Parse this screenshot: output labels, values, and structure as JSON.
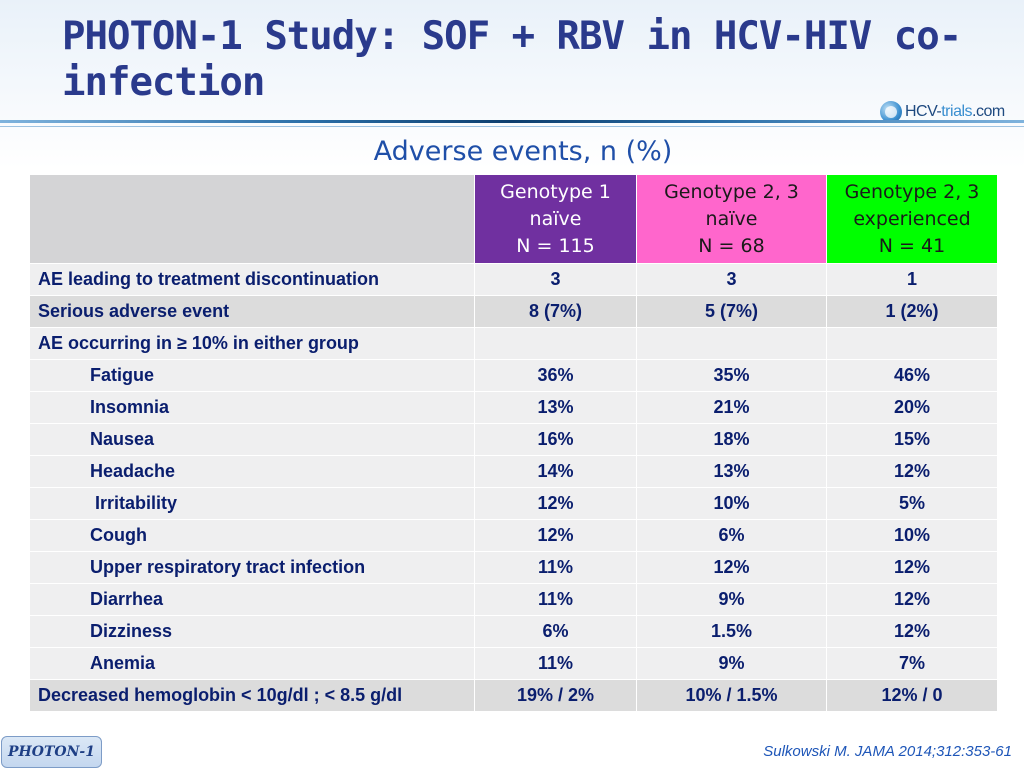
{
  "title": "PHOTON-1 Study: SOF + RBV in HCV-HIV co-infection",
  "logo": {
    "part1": "HCV-",
    "part2": "trials",
    "part3": ".com"
  },
  "subtitle": "Adverse events, n (%)",
  "colors": {
    "genotype1": "#7030a0",
    "genotype23_naive": "#ff66cc",
    "genotype23_experienced": "#00ff00",
    "title": "#2a3a8c"
  },
  "table": {
    "headers": [
      {
        "line1": "Genotype 1",
        "line2": "naïve",
        "line3": "N = 115"
      },
      {
        "line1": "Genotype 2, 3",
        "line2": "naïve",
        "line3": "N = 68"
      },
      {
        "line1": "Genotype 2, 3",
        "line2": "experienced",
        "line3": "N = 41"
      }
    ],
    "rows": [
      {
        "label": "AE leading to treatment discontinuation",
        "values": [
          "3",
          "3",
          "1"
        ]
      },
      {
        "label": "Serious adverse event",
        "values": [
          "8 (7%)",
          "5 (7%)",
          "1 (2%)"
        ]
      },
      {
        "label": "AE occurring in ≥ 10% in either group",
        "values": [
          "",
          "",
          ""
        ]
      },
      {
        "label": "Fatigue",
        "values": [
          "36%",
          "35%",
          "46%"
        ]
      },
      {
        "label": "Insomnia",
        "values": [
          "13%",
          "21%",
          "20%"
        ]
      },
      {
        "label": "Nausea",
        "values": [
          "16%",
          "18%",
          "15%"
        ]
      },
      {
        "label": "Headache",
        "values": [
          "14%",
          "13%",
          "12%"
        ]
      },
      {
        "label": "Irritability",
        "values": [
          "12%",
          "10%",
          "5%"
        ]
      },
      {
        "label": "Cough",
        "values": [
          "12%",
          "6%",
          "10%"
        ]
      },
      {
        "label": "Upper respiratory tract infection",
        "values": [
          "11%",
          "12%",
          "12%"
        ]
      },
      {
        "label": "Diarrhea",
        "values": [
          "11%",
          "9%",
          "12%"
        ]
      },
      {
        "label": "Dizziness",
        "values": [
          "6%",
          "1.5%",
          "12%"
        ]
      },
      {
        "label": "Anemia",
        "values": [
          "11%",
          "9%",
          "7%"
        ]
      },
      {
        "label": "Decreased hemoglobin < 10g/dl ; < 8.5 g/dl",
        "values": [
          "19% / 2%",
          "10% / 1.5%",
          "12% / 0"
        ]
      }
    ]
  },
  "footer": {
    "tag": "PHOTON-1",
    "citation": "Sulkowski M. JAMA 2014;312:353-61"
  }
}
